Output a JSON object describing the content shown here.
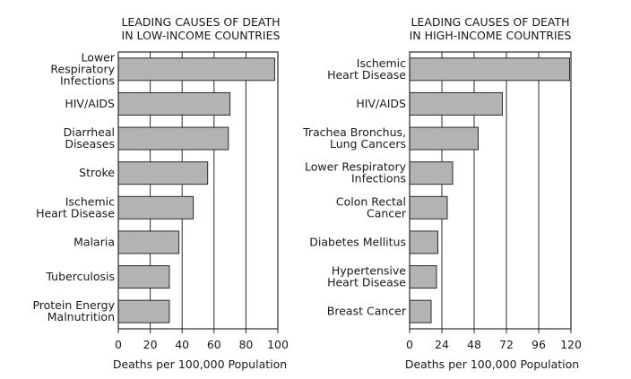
{
  "chart_data": [
    {
      "type": "bar",
      "orientation": "horizontal",
      "title": [
        "LEADING CAUSES OF DEATH",
        "IN LOW-INCOME COUNTRIES"
      ],
      "categories": [
        [
          "Lower",
          "Respiratory",
          "Infections"
        ],
        [
          "HIV/AIDS"
        ],
        [
          "Diarrheal",
          "Diseases"
        ],
        [
          "Stroke"
        ],
        [
          "Ischemic",
          "Heart Disease"
        ],
        [
          "Malaria"
        ],
        [
          "Tuberculosis"
        ],
        [
          "Protein Energy",
          "Malnutrition"
        ]
      ],
      "values": [
        98,
        70,
        69,
        56,
        47,
        38,
        32,
        32
      ],
      "xlim": [
        0,
        100
      ],
      "xticks": [
        0,
        20,
        40,
        60,
        80,
        100
      ],
      "xlabel": "Deaths per 100,000 Population",
      "grid": true
    },
    {
      "type": "bar",
      "orientation": "horizontal",
      "title": [
        "LEADING CAUSES OF DEATH",
        "IN HIGH-INCOME COUNTRIES"
      ],
      "categories": [
        [
          "Ischemic",
          "Heart Disease"
        ],
        [
          "HIV/AIDS"
        ],
        [
          "Trachea Bronchus,",
          "Lung Cancers"
        ],
        [
          "Lower Respiratory",
          "Infections"
        ],
        [
          "Colon Rectal",
          "Cancer"
        ],
        [
          "Diabetes Mellitus"
        ],
        [
          "Hypertensive",
          "Heart Disease"
        ],
        [
          "Breast Cancer"
        ]
      ],
      "values": [
        119,
        69,
        51,
        32,
        28,
        21,
        20,
        16
      ],
      "xlim": [
        0,
        120
      ],
      "xticks": [
        0,
        24,
        48,
        72,
        96,
        120
      ],
      "xlabel": "Deaths per 100,000 Population",
      "grid": true
    }
  ]
}
